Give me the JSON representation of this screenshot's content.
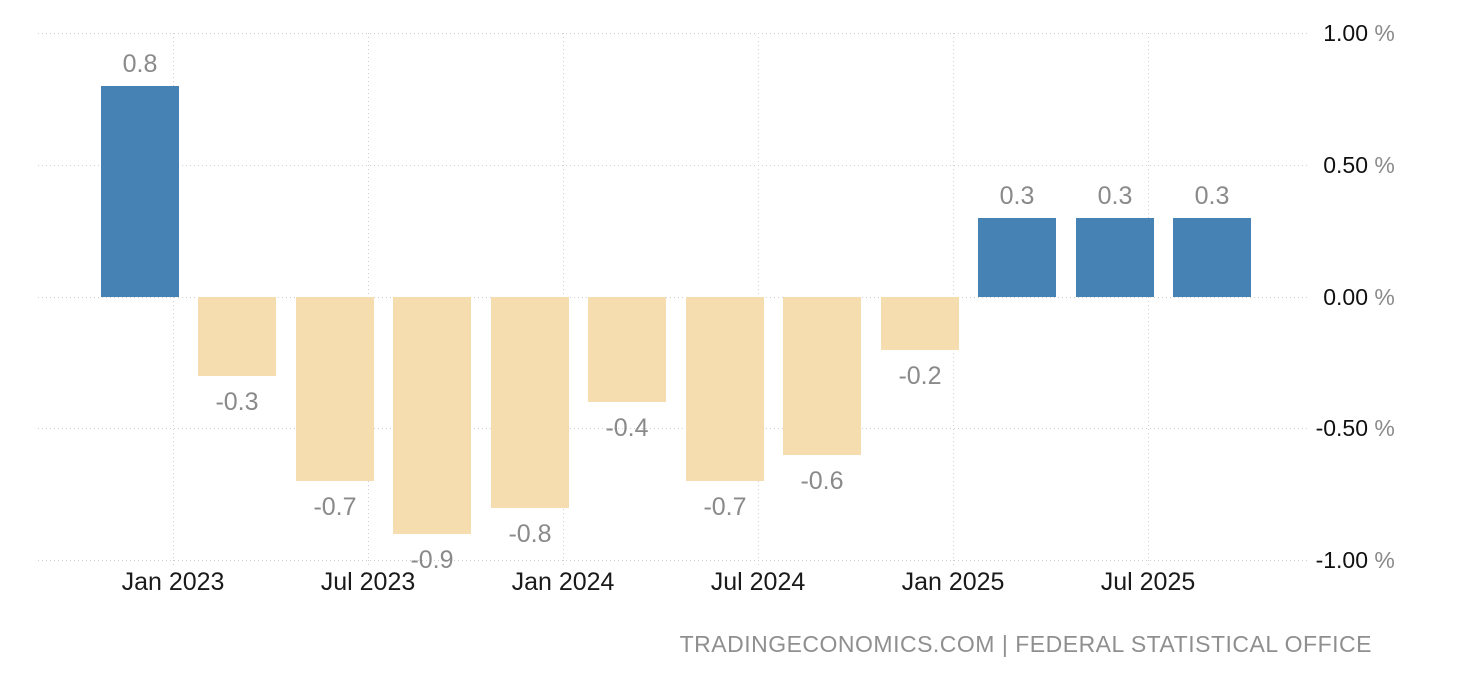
{
  "chart_data": {
    "type": "bar",
    "title": "",
    "x_tick_labels": [
      "Jan 2023",
      "Jul 2023",
      "Jan 2024",
      "Jul 2024",
      "Jan 2025",
      "Jul 2025"
    ],
    "y_tick_labels": [
      "1.00 %",
      "0.50 %",
      "0.00 %",
      "-0.50 %",
      "-1.00 %"
    ],
    "ylim": [
      -1.0,
      1.0
    ],
    "values": [
      0.8,
      -0.3,
      -0.7,
      -0.9,
      -0.8,
      -0.4,
      -0.7,
      -0.6,
      -0.2,
      0.3,
      0.3,
      0.3
    ],
    "bar_labels": [
      "0.8",
      "-0.3",
      "-0.7",
      "-0.9",
      "-0.8",
      "-0.4",
      "-0.7",
      "-0.6",
      "-0.2",
      "0.3",
      "0.3",
      "0.3"
    ],
    "colors": {
      "positive_bar": "#4682b4",
      "negative_bar": "#f5ddaf",
      "gridline": "#cfcfcf",
      "value_label": "#8a8a8a",
      "x_axis_label": "#1a1a1a",
      "y_axis_number": "#111111",
      "percent_sign": "#8a8a8a",
      "attribution_text": "#8f8f8f"
    },
    "grid": true,
    "legend": null,
    "attribution": "TRADINGECONOMICS.COM | FEDERAL STATISTICAL OFFICE"
  }
}
